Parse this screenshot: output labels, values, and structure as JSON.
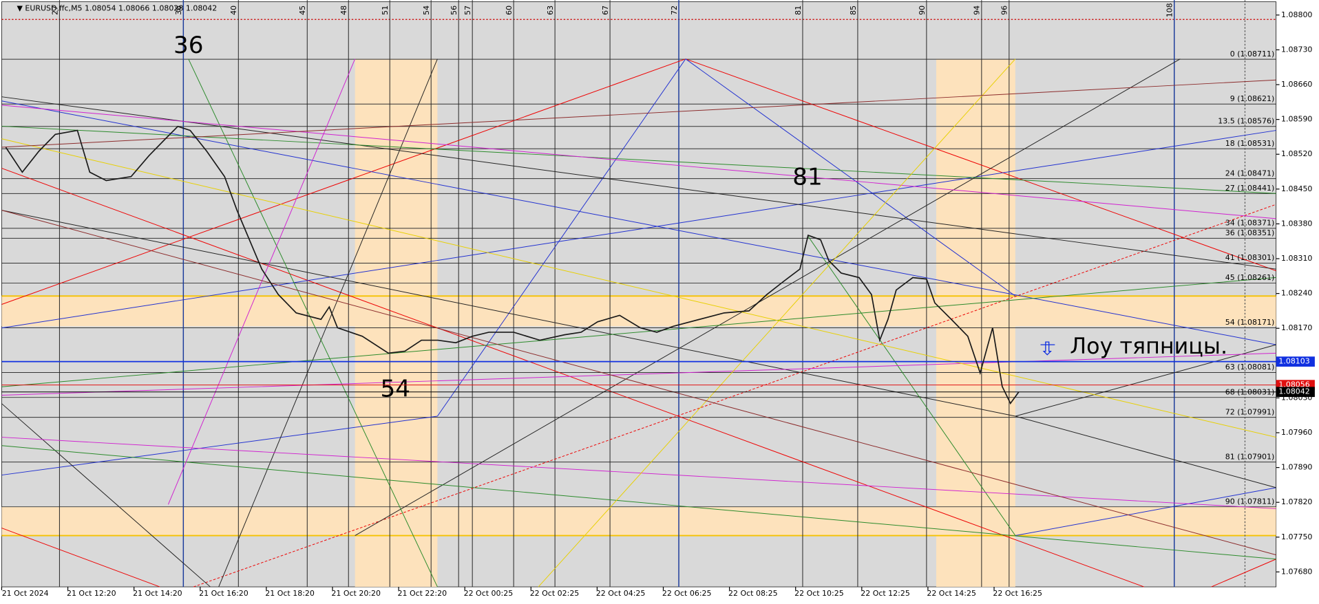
{
  "chart_data": {
    "type": "line",
    "header": {
      "symbol": "EURUSD.ffc,M5",
      "ohlc": [
        1.08054,
        1.08066,
        1.08028,
        1.08042
      ]
    },
    "xlim": [
      22.8,
      115.4
    ],
    "ylim": [
      1.0765,
      1.0883
    ],
    "yticks": [
      {
        "value": 1.088,
        "label": "1.08800"
      },
      {
        "value": 1.0873,
        "label": "1.08730"
      },
      {
        "value": 1.0866,
        "label": "1.08660"
      },
      {
        "value": 1.0859,
        "label": "1.08590"
      },
      {
        "value": 1.0852,
        "label": "1.08520"
      },
      {
        "value": 1.0845,
        "label": "1.08450"
      },
      {
        "value": 1.0838,
        "label": "1.08380"
      },
      {
        "value": 1.0831,
        "label": "1.08310"
      },
      {
        "value": 1.0824,
        "label": "1.08240"
      },
      {
        "value": 1.0817,
        "label": "1.08170"
      },
      {
        "value": 1.0803,
        "label": "1.08030"
      },
      {
        "value": 1.0796,
        "label": "1.07960"
      },
      {
        "value": 1.0789,
        "label": "1.07890"
      },
      {
        "value": 1.0782,
        "label": "1.07820"
      },
      {
        "value": 1.0775,
        "label": "1.07750"
      },
      {
        "value": 1.0768,
        "label": "1.07680"
      }
    ],
    "categories": [
      "21 Oct 2024",
      "21 Oct 12:20",
      "21 Oct 14:20",
      "21 Oct 16:20",
      "21 Oct 18:20",
      "21 Oct 20:20",
      "21 Oct 22:20",
      "22 Oct 00:25",
      "22 Oct 02:25",
      "22 Oct 04:25",
      "22 Oct 06:25",
      "22 Oct 08:25",
      "22 Oct 10:25",
      "22 Oct 12:25",
      "22 Oct 14:25",
      "22 Oct 16:25"
    ],
    "bar_counts": [
      27,
      36,
      40,
      45,
      48,
      51,
      54,
      56,
      57,
      60,
      63,
      67,
      72,
      81,
      85,
      90,
      94,
      96,
      108
    ],
    "series": [
      {
        "name": "EURUSD",
        "color": "#1a1a1a",
        "x": [
          23.1,
          24.3,
          25.5,
          26.7,
          28.3,
          29.2,
          30.4,
          32.2,
          33.5,
          34.7,
          35.6,
          36.5,
          37.7,
          39.0,
          39.9,
          40.8,
          41.7,
          42.9,
          44.2,
          46.0,
          46.6,
          47.2,
          49.0,
          50.9,
          52.1,
          53.3,
          54.5,
          55.8,
          57.0,
          58.2,
          60.0,
          61.9,
          63.7,
          64.9,
          66.1,
          67.7,
          69.2,
          70.4,
          71.6,
          73.5,
          75.3,
          77.1,
          78.4,
          79.6,
          80.8,
          81.4,
          82.3,
          82.9,
          83.8,
          85.1,
          86.0,
          86.6,
          87.2,
          87.8,
          89.0,
          90.0,
          90.6,
          91.8,
          93.0,
          93.9,
          94.8,
          95.5,
          96.1,
          96.7
        ],
        "values": [
          1.08534,
          1.08484,
          1.08526,
          1.0856,
          1.08568,
          1.08484,
          1.08467,
          1.08475,
          1.08517,
          1.08551,
          1.08576,
          1.08568,
          1.08526,
          1.08475,
          1.08407,
          1.08348,
          1.08289,
          1.08238,
          1.08201,
          1.08188,
          1.08213,
          1.08171,
          1.08154,
          1.0812,
          1.08124,
          1.08146,
          1.08146,
          1.08141,
          1.08154,
          1.08162,
          1.08162,
          1.08146,
          1.08157,
          1.08162,
          1.08183,
          1.08196,
          1.08171,
          1.08162,
          1.08174,
          1.08188,
          1.08201,
          1.08205,
          1.08238,
          1.08264,
          1.08289,
          1.08357,
          1.08348,
          1.08306,
          1.08281,
          1.08272,
          1.08238,
          1.08146,
          1.08188,
          1.08247,
          1.08272,
          1.08269,
          1.08221,
          1.08188,
          1.08154,
          1.0808,
          1.08171,
          1.08053,
          1.08019,
          1.08042
        ]
      }
    ],
    "levels": [
      {
        "label": "0 (1.08711)",
        "price": 1.08711
      },
      {
        "label": "9 (1.08621)",
        "price": 1.08621
      },
      {
        "label": "13.5 (1.08576)",
        "price": 1.08576
      },
      {
        "label": "18 (1.08531)",
        "price": 1.08531
      },
      {
        "label": "24 (1.08471)",
        "price": 1.08471
      },
      {
        "label": "27 (1.08441)",
        "price": 1.08441
      },
      {
        "label": "34 (1.08371)",
        "price": 1.08371
      },
      {
        "label": "36 (1.08351)",
        "price": 1.08351
      },
      {
        "label": "41 (1.08301)",
        "price": 1.08301
      },
      {
        "label": "45 (1.08261)",
        "price": 1.08261
      },
      {
        "label": "54 (1.08171)",
        "price": 1.08171
      },
      {
        "label": "63 (1.08081)",
        "price": 1.08081
      },
      {
        "label": "68 (1.08031)",
        "price": 1.08031
      },
      {
        "label": "72 (1.07991)",
        "price": 1.07991
      },
      {
        "label": "81 (1.07901)",
        "price": 1.07901
      },
      {
        "label": "90 (1.07811)",
        "price": 1.07811
      }
    ],
    "price_labels": [
      {
        "value": 1.08103,
        "color": "#1030e0"
      },
      {
        "value": 1.08056,
        "color": "#e01010"
      },
      {
        "value": 1.08042,
        "color": "#000000"
      }
    ],
    "annotations": [
      "36",
      "54",
      "81",
      "Лоу тяпницы."
    ]
  }
}
